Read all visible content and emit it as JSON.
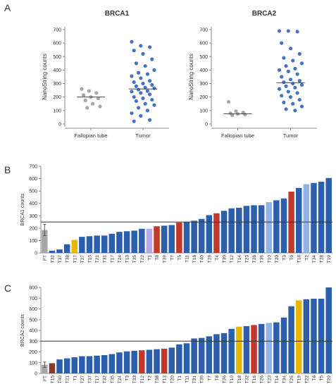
{
  "panel_labels": [
    "A",
    "B",
    "C"
  ],
  "chart_data": [
    {
      "type": "strip",
      "title": "BRCA1",
      "ylabel": "NanoString counts",
      "ylim": [
        0,
        700
      ],
      "yticks": [
        0,
        100,
        200,
        300,
        400,
        500,
        600,
        700
      ],
      "groups": [
        {
          "name": "Fallopian tube",
          "color": "#a6a6a6",
          "median": 200,
          "values": [
            260,
            245,
            230,
            215,
            200,
            190,
            175,
            150,
            130,
            120
          ]
        },
        {
          "name": "Tumor",
          "color": "#4472c4",
          "median": 260,
          "values": [
            610,
            580,
            570,
            545,
            520,
            480,
            450,
            430,
            400,
            380,
            370,
            355,
            340,
            320,
            310,
            300,
            290,
            280,
            270,
            265,
            255,
            245,
            240,
            230,
            220,
            200,
            190,
            180,
            170,
            150,
            140,
            120,
            100,
            80,
            60,
            30,
            20
          ]
        }
      ]
    },
    {
      "type": "strip",
      "title": "BRCA2",
      "ylabel": "NanoString counts",
      "ylim": [
        0,
        700
      ],
      "yticks": [
        0,
        100,
        200,
        300,
        400,
        500,
        600,
        700
      ],
      "groups": [
        {
          "name": "Fallopian tube",
          "color": "#a6a6a6",
          "median": 75,
          "values": [
            165,
            95,
            85,
            80,
            75,
            70,
            65
          ]
        },
        {
          "name": "Tumor",
          "color": "#4472c4",
          "median": 305,
          "values": [
            690,
            690,
            685,
            600,
            560,
            520,
            490,
            470,
            450,
            430,
            410,
            400,
            390,
            370,
            350,
            330,
            320,
            310,
            300,
            290,
            280,
            270,
            260,
            240,
            230,
            210,
            200,
            180,
            160,
            150,
            130,
            110,
            100
          ]
        }
      ]
    },
    {
      "type": "bar",
      "ylabel": "BRCA1 counts",
      "ylim": [
        0,
        700
      ],
      "yticks": [
        0,
        100,
        200,
        300,
        400,
        500,
        600,
        700
      ],
      "reference_line": 250,
      "categories": [
        "FT",
        "T32",
        "T37",
        "T38",
        "T17",
        "T27",
        "T15",
        "T21",
        "T31",
        "T17",
        "T24",
        "T13",
        "T35",
        "T22",
        "T1",
        "T8",
        "T39",
        "T7",
        "T5",
        "T11",
        "T16",
        "T40",
        "T29",
        "T4",
        "T30",
        "T12",
        "T14",
        "T23",
        "T26",
        "T36",
        "T10",
        "T20",
        "T3",
        "T6",
        "T18",
        "T2",
        "T34",
        "T28",
        "T19"
      ],
      "values": [
        185,
        18,
        28,
        70,
        105,
        130,
        135,
        140,
        140,
        155,
        170,
        175,
        180,
        195,
        195,
        215,
        220,
        225,
        245,
        250,
        260,
        275,
        305,
        320,
        340,
        360,
        365,
        380,
        385,
        385,
        410,
        425,
        440,
        495,
        525,
        555,
        565,
        575,
        605
      ],
      "errors": [
        45,
        null,
        null,
        null,
        null,
        null,
        null,
        null,
        null,
        null,
        null,
        null,
        null,
        null,
        null,
        null,
        null,
        null,
        null,
        null,
        null,
        null,
        null,
        null,
        null,
        null,
        null,
        null,
        null,
        null,
        null,
        null,
        null,
        null,
        null,
        null,
        null,
        null,
        null
      ],
      "colors": [
        "#a6a6a6",
        "#2b5fad",
        "#2b5fad",
        "#2b5fad",
        "#e6b800",
        "#2b5fad",
        "#2b5fad",
        "#2b5fad",
        "#2b5fad",
        "#2b5fad",
        "#2b5fad",
        "#2b5fad",
        "#2b5fad",
        "#2b5fad",
        "#b7a8e8",
        "#c0392b",
        "#2b5fad",
        "#2b5fad",
        "#c0392b",
        "#2b5fad",
        "#2b5fad",
        "#2b5fad",
        "#2b5fad",
        "#c0392b",
        "#2b5fad",
        "#2b5fad",
        "#2b5fad",
        "#2b5fad",
        "#2b5fad",
        "#2b5fad",
        "#8fb3e8",
        "#2b5fad",
        "#2b5fad",
        "#c0392b",
        "#2b5fad",
        "#8fb3e8",
        "#2b5fad",
        "#2b5fad",
        "#2b5fad"
      ]
    },
    {
      "type": "bar",
      "ylabel": "BRCA2 counts",
      "ylim": [
        0,
        800
      ],
      "yticks": [
        0,
        100,
        200,
        300,
        400,
        500,
        600,
        700,
        800
      ],
      "reference_line": 300,
      "categories": [
        "FT",
        "T15",
        "T40",
        "T21",
        "T1",
        "T27",
        "T37",
        "T17",
        "T32",
        "T35",
        "T24",
        "T3",
        "T33",
        "T12",
        "T2",
        "T38",
        "T13",
        "T20",
        "T1",
        "T11",
        "T31",
        "T39",
        "T7",
        "T8",
        "T36",
        "T10",
        "T18",
        "T32",
        "T16",
        "T26",
        "T23",
        "T14",
        "T34",
        "T25",
        "T19",
        "T22",
        "T6",
        "T5",
        "T29"
      ],
      "values": [
        80,
        95,
        130,
        140,
        150,
        160,
        160,
        165,
        170,
        180,
        195,
        205,
        210,
        215,
        220,
        225,
        230,
        240,
        270,
        280,
        325,
        330,
        345,
        365,
        375,
        415,
        435,
        440,
        450,
        460,
        470,
        475,
        520,
        625,
        680,
        690,
        695,
        695,
        800
      ],
      "errors": [
        25,
        null,
        null,
        null,
        null,
        null,
        null,
        null,
        null,
        null,
        null,
        null,
        null,
        null,
        null,
        null,
        null,
        null,
        null,
        null,
        null,
        null,
        null,
        null,
        null,
        null,
        null,
        null,
        null,
        null,
        null,
        null,
        null,
        null,
        null,
        null,
        null,
        null,
        null
      ],
      "colors": [
        "#a6a6a6",
        "#8b3a2a",
        "#2b5fad",
        "#2b5fad",
        "#2b5fad",
        "#2b5fad",
        "#2b5fad",
        "#2b5fad",
        "#2b5fad",
        "#2b5fad",
        "#2b5fad",
        "#2b5fad",
        "#2b5fad",
        "#c0392b",
        "#2b5fad",
        "#2b5fad",
        "#c0392b",
        "#2b5fad",
        "#2b5fad",
        "#2b5fad",
        "#2b5fad",
        "#2b5fad",
        "#2b5fad",
        "#2b5fad",
        "#2b5fad",
        "#2b5fad",
        "#e6b800",
        "#2b5fad",
        "#c0392b",
        "#2b5fad",
        "#8fb3e8",
        "#2b5fad",
        "#2b5fad",
        "#2b5fad",
        "#e6b800",
        "#2b5fad",
        "#2b5fad",
        "#2b5fad",
        "#2b5fad"
      ]
    }
  ]
}
